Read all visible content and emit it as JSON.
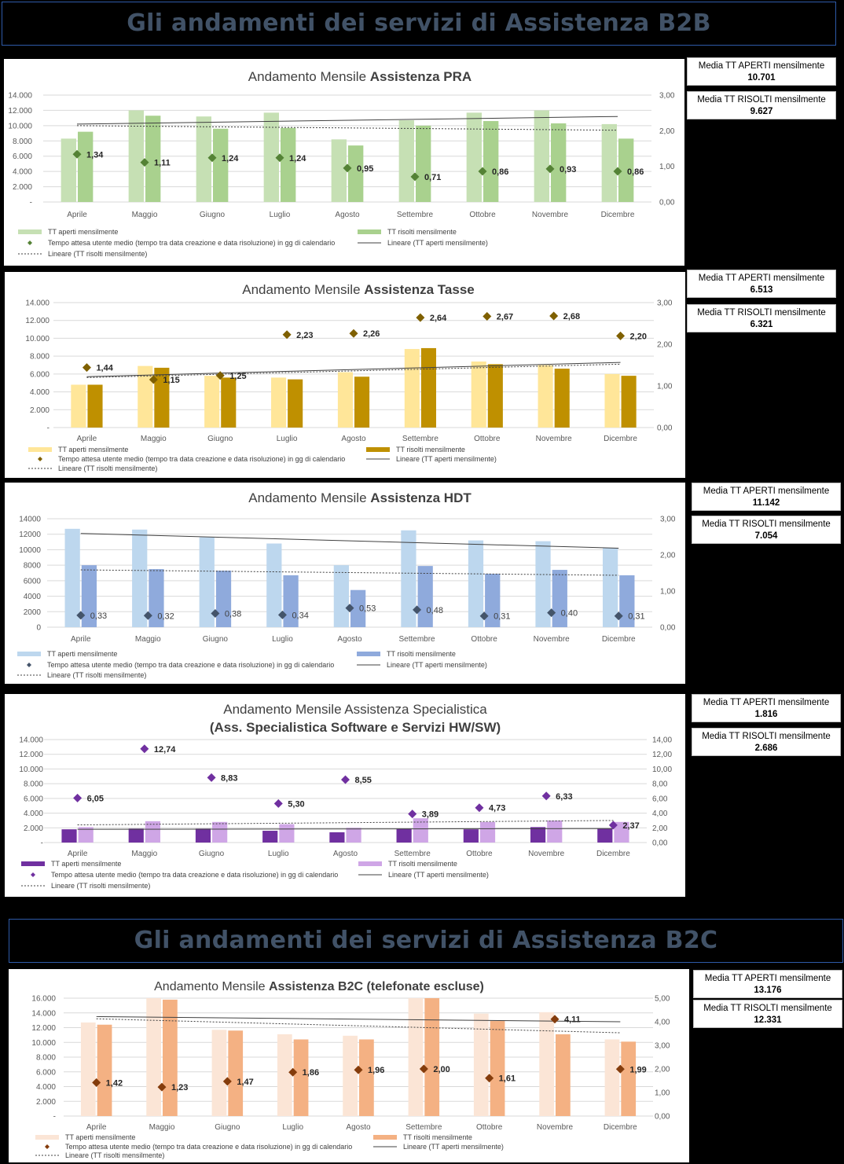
{
  "banners": {
    "b2b": "Gli andamenti dei servizi di Assistenza B2B",
    "b2c": "Gli andamenti dei servizi di Assistenza B2C"
  },
  "chart_data": [
    {
      "type": "bar",
      "title_light": "Andamento Mensile ",
      "title_bold": "Assistenza PRA",
      "categories": [
        "Aprile",
        "Maggio",
        "Giugno",
        "Luglio",
        "Agosto",
        "Settembre",
        "Ottobre",
        "Novembre",
        "Dicembre"
      ],
      "left_ticks": [
        "-",
        "2.000",
        "4.000",
        "6.000",
        "8.000",
        "10.000",
        "12.000",
        "14.000"
      ],
      "right_ticks": [
        "0,00",
        "1,00",
        "2,00",
        "3,00"
      ],
      "ylim_left": [
        0,
        14000
      ],
      "ylim_right": [
        0,
        3
      ],
      "series": [
        {
          "name": "TT aperti mensilmente",
          "values": [
            8300,
            12000,
            11200,
            11700,
            8200,
            10700,
            11700,
            12000,
            10200
          ]
        },
        {
          "name": "TT risolti mensilmente",
          "values": [
            9200,
            11300,
            9600,
            9700,
            7400,
            10000,
            10600,
            10300,
            8300
          ]
        }
      ],
      "line_series": {
        "name": "Tempo attesa utente medio (tempo tra data creazione e data risoluzione) in gg di calendario",
        "values": [
          1.34,
          1.11,
          1.24,
          1.24,
          0.95,
          0.71,
          0.86,
          0.93,
          0.86
        ],
        "labels": [
          "1,34",
          "1,11",
          "1,24",
          "1,24",
          "0,95",
          "0,71",
          "0,86",
          "0,93",
          "0,86"
        ]
      },
      "trend_open_name": "Lineare (TT aperti mensilmente)",
      "trend_resolved_name": "Lineare (TT risolti mensilmente)",
      "trend_open": [
        10200,
        11200
      ],
      "trend_resolved": [
        10000,
        9400
      ],
      "colors": {
        "open": "#c6e0b4",
        "resolved": "#a9d18e",
        "marker": "#548235"
      },
      "summary": {
        "aperti_label": "Media TT APERTI mensilmente",
        "aperti_value": "10.701",
        "risolti_label": "Media TT RISOLTI mensilmente",
        "risolti_value": "9.627"
      }
    },
    {
      "type": "bar",
      "title_light": "Andamento Mensile ",
      "title_bold": "Assistenza Tasse",
      "categories": [
        "Aprile",
        "Maggio",
        "Giugno",
        "Luglio",
        "Agosto",
        "Settembre",
        "Ottobre",
        "Novembre",
        "Dicembre"
      ],
      "left_ticks": [
        "-",
        "2.000",
        "4.000",
        "6.000",
        "8.000",
        "10.000",
        "12.000",
        "14.000"
      ],
      "right_ticks": [
        "0,00",
        "1,00",
        "2,00",
        "3,00"
      ],
      "ylim_left": [
        0,
        14000
      ],
      "ylim_right": [
        0,
        3
      ],
      "series": [
        {
          "name": "TT aperti mensilmente",
          "values": [
            4800,
            6900,
            5800,
            5600,
            6200,
            8800,
            7400,
            7000,
            6000
          ]
        },
        {
          "name": "TT risolti mensilmente",
          "values": [
            4800,
            6700,
            5600,
            5400,
            5700,
            8900,
            7100,
            6600,
            5800
          ]
        }
      ],
      "line_series": {
        "name": "Tempo attesa utente medio (tempo tra data creazione e data risoluzione) in gg di calendario",
        "values": [
          1.44,
          1.15,
          1.25,
          2.23,
          2.26,
          2.64,
          2.67,
          2.68,
          2.2
        ],
        "labels": [
          "1,44",
          "1,15",
          "1,25",
          "2,23",
          "2,26",
          "2,64",
          "2,67",
          "2,68",
          "2,20"
        ]
      },
      "trend_open_name": "Lineare (TT aperti mensilmente)",
      "trend_resolved_name": "Lineare (TT risolti mensilmente)",
      "trend_open": [
        5700,
        7300
      ],
      "trend_resolved": [
        5600,
        7100
      ],
      "colors": {
        "open": "#ffe699",
        "resolved": "#bf9000",
        "marker": "#7f6000"
      },
      "summary": {
        "aperti_label": "Media TT APERTI mensilmente",
        "aperti_value": "6.513",
        "risolti_label": "Media TT RISOLTI mensilmente",
        "risolti_value": "6.321"
      }
    },
    {
      "type": "bar",
      "title_light": "Andamento Mensile ",
      "title_bold": "Assistenza HDT",
      "categories": [
        "Aprile",
        "Maggio",
        "Giugno",
        "Luglio",
        "Agosto",
        "Settembre",
        "Ottobre",
        "Novembre",
        "Dicembre"
      ],
      "left_ticks": [
        "0",
        "2000",
        "4000",
        "6000",
        "8000",
        "10000",
        "12000",
        "14000"
      ],
      "right_ticks": [
        "0,00",
        "1,00",
        "2,00",
        "3,00"
      ],
      "ylim_left": [
        0,
        14000
      ],
      "ylim_right": [
        0,
        3
      ],
      "series": [
        {
          "name": "TT aperti mensilmente",
          "values": [
            12700,
            12600,
            11600,
            10800,
            8000,
            12500,
            11200,
            11100,
            10200
          ]
        },
        {
          "name": "TT risolti mensilmente",
          "values": [
            8000,
            7500,
            7300,
            6700,
            4800,
            7900,
            6900,
            7400,
            6700
          ]
        }
      ],
      "line_series": {
        "name": "Tempo attesa utente medio (tempo tra data creazione e data risoluzione) in gg di calendario",
        "values": [
          0.33,
          0.32,
          0.38,
          0.34,
          0.53,
          0.48,
          0.31,
          0.4,
          0.31
        ],
        "labels": [
          "0,33",
          "0,32",
          "0,38",
          "0,34",
          "0,53",
          "0,48",
          "0,31",
          "0,40",
          "0,31"
        ]
      },
      "trend_open_name": "Lineare (TT aperti mensilmente)",
      "trend_resolved_name": "Lineare (TT risolti mensilmente)",
      "trend_open": [
        12100,
        10200
      ],
      "trend_resolved": [
        7400,
        6700
      ],
      "colors": {
        "open": "#bdd7ee",
        "resolved": "#8faadc",
        "marker": "#44546a"
      },
      "summary": {
        "aperti_label": "Media TT APERTI mensilmente",
        "aperti_value": "11.142",
        "risolti_label": "Media TT RISOLTI mensilmente",
        "risolti_value": "7.054"
      }
    },
    {
      "type": "bar",
      "title_light": "Andamento Mensile Assistenza Specialistica",
      "title_bold": "(Ass. Specialistica Software e Servizi HW/SW)",
      "categories": [
        "Aprile",
        "Maggio",
        "Giugno",
        "Luglio",
        "Agosto",
        "Settembre",
        "Ottobre",
        "Novembre",
        "Dicembre"
      ],
      "left_ticks": [
        "-",
        "2.000",
        "4.000",
        "6.000",
        "8.000",
        "10.000",
        "12.000",
        "14.000"
      ],
      "right_ticks": [
        "0,00",
        "2,00",
        "4,00",
        "6,00",
        "8,00",
        "10,00",
        "12,00",
        "14,00"
      ],
      "ylim_left": [
        0,
        14000
      ],
      "ylim_right": [
        0,
        14
      ],
      "series": [
        {
          "name": "TT aperti mensilmente",
          "values": [
            1800,
            1900,
            1900,
            1600,
            1400,
            1900,
            1800,
            2100,
            1900
          ]
        },
        {
          "name": "TT risolti mensilmente",
          "values": [
            2100,
            2900,
            2800,
            2500,
            2000,
            3300,
            2800,
            3000,
            2800
          ]
        }
      ],
      "line_series": {
        "name": "Tempo attesa utente medio (tempo tra data creazione e data risoluzione) in gg di calendario",
        "values": [
          6.05,
          12.74,
          8.83,
          5.3,
          8.55,
          3.89,
          4.73,
          6.33,
          2.37
        ],
        "labels": [
          "6,05",
          "12,74",
          "8,83",
          "5,30",
          "8,55",
          "3,89",
          "4,73",
          "6,33",
          "2,37"
        ]
      },
      "trend_open_name": "Lineare (TT aperti mensilmente)",
      "trend_resolved_name": "Lineare (TT risolti mensilmente)",
      "trend_open": [
        1800,
        1900
      ],
      "trend_resolved": [
        2400,
        3000
      ],
      "colors": {
        "open": "#7030a0",
        "resolved": "#cfa6e6",
        "marker": "#7030a0"
      },
      "summary": {
        "aperti_label": "Media TT APERTI mensilmente",
        "aperti_value": "1.816",
        "risolti_label": "Media TT RISOLTI mensilmente",
        "risolti_value": "2.686"
      }
    },
    {
      "type": "bar",
      "title_light": "Andamento Mensile ",
      "title_bold": "Assistenza B2C (telefonate escluse)",
      "categories": [
        "Aprile",
        "Maggio",
        "Giugno",
        "Luglio",
        "Agosto",
        "Settembre",
        "Ottobre",
        "Novembre",
        "Dicembre"
      ],
      "left_ticks": [
        "-",
        "2.000",
        "4.000",
        "6.000",
        "8.000",
        "10.000",
        "12.000",
        "14.000",
        "16.000"
      ],
      "right_ticks": [
        "0,00",
        "1,00",
        "2,00",
        "3,00",
        "4,00",
        "5,00"
      ],
      "ylim_left": [
        0,
        16000
      ],
      "ylim_right": [
        0,
        5
      ],
      "series": [
        {
          "name": "TT aperti mensilmente",
          "values": [
            12700,
            16000,
            11700,
            11100,
            10900,
            16000,
            13900,
            14100,
            10400
          ]
        },
        {
          "name": "TT risolti mensilmente",
          "values": [
            12400,
            15800,
            11600,
            10400,
            10400,
            16000,
            12900,
            11100,
            10100
          ]
        }
      ],
      "line_series": {
        "name": "Tempo attesa utente medio (tempo tra data creazione e data risoluzione) in gg di calendario",
        "values": [
          1.42,
          1.23,
          1.47,
          1.86,
          1.96,
          2.0,
          1.61,
          4.11,
          1.99
        ],
        "labels": [
          "1,42",
          "1,23",
          "1,47",
          "1,86",
          "1,96",
          "2,00",
          "1,61",
          "4,11",
          "1,99"
        ]
      },
      "trend_open_name": "Lineare (TT aperti mensilmente)",
      "trend_resolved_name": "Lineare (TT risolti mensilmente)",
      "trend_open": [
        13500,
        12800
      ],
      "trend_resolved": [
        13200,
        11300
      ],
      "colors": {
        "open": "#fbe5d6",
        "resolved": "#f4b183",
        "marker": "#843c0c"
      },
      "summary": {
        "aperti_label": "Media TT APERTI mensilmente",
        "aperti_value": "13.176",
        "risolti_label": "Media TT RISOLTI mensilmente",
        "risolti_value": "12.331"
      }
    }
  ]
}
